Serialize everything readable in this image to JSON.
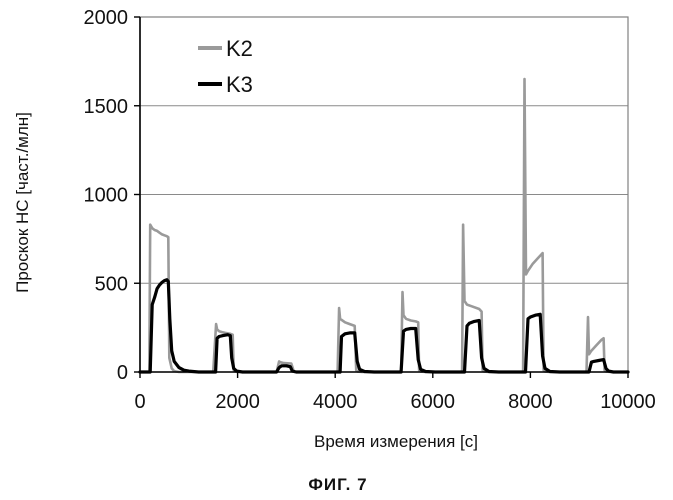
{
  "chart_data": {
    "type": "line",
    "ylabel": "Проскок НС [част./млн]",
    "xlabel": "Время измерения [с]",
    "caption": "ФИГ. 7",
    "xlim": [
      0,
      10000
    ],
    "ylim": [
      0,
      2000
    ],
    "x_ticks": [
      "0",
      "2000",
      "4000",
      "6000",
      "8000",
      "10000"
    ],
    "y_ticks": [
      "0",
      "500",
      "1000",
      "1500",
      "2000"
    ],
    "grid": "horizontal",
    "legend": "top-left",
    "series": [
      {
        "name": "K2",
        "color": "#9a9a9a",
        "x": [
          0,
          190,
          210,
          250,
          300,
          350,
          400,
          450,
          500,
          550,
          580,
          600,
          650,
          700,
          800,
          1000,
          1500,
          1560,
          1580,
          1620,
          1680,
          1750,
          1850,
          1900,
          1920,
          1950,
          2000,
          2100,
          2300,
          2800,
          2850,
          2870,
          2950,
          3100,
          3150,
          3180,
          3250,
          3400,
          4050,
          4080,
          4100,
          4200,
          4300,
          4400,
          4430,
          4460,
          4550,
          4700,
          5350,
          5380,
          5400,
          5450,
          5550,
          5650,
          5700,
          5720,
          5750,
          5850,
          5950,
          6600,
          6620,
          6650,
          6700,
          6800,
          6950,
          7000,
          7020,
          7050,
          7150,
          7300,
          7850,
          7880,
          7910,
          7950,
          8050,
          8150,
          8250,
          8270,
          8300,
          8400,
          8600,
          9150,
          9180,
          9200,
          9250,
          9350,
          9450,
          9500,
          9520,
          9550,
          9650,
          10000
        ],
        "values": [
          0,
          0,
          830,
          810,
          800,
          795,
          785,
          775,
          770,
          765,
          760,
          80,
          20,
          5,
          0,
          0,
          0,
          270,
          240,
          230,
          225,
          220,
          215,
          210,
          10,
          2,
          0,
          0,
          0,
          0,
          60,
          55,
          50,
          48,
          5,
          0,
          0,
          0,
          0,
          360,
          300,
          280,
          270,
          260,
          10,
          2,
          0,
          0,
          0,
          450,
          320,
          300,
          290,
          285,
          280,
          10,
          2,
          0,
          0,
          0,
          830,
          400,
          380,
          370,
          355,
          340,
          10,
          2,
          0,
          0,
          0,
          1650,
          550,
          570,
          610,
          640,
          670,
          10,
          2,
          0,
          0,
          0,
          310,
          100,
          120,
          150,
          180,
          190,
          10,
          2,
          0,
          0
        ]
      },
      {
        "name": "K3",
        "color": "#000000",
        "x": [
          0,
          210,
          250,
          300,
          350,
          400,
          450,
          500,
          550,
          580,
          610,
          650,
          700,
          800,
          900,
          1000,
          1200,
          1550,
          1580,
          1620,
          1700,
          1800,
          1850,
          1880,
          1920,
          1980,
          2100,
          2300,
          2800,
          2850,
          2900,
          3000,
          3080,
          3120,
          3200,
          4100,
          4130,
          4200,
          4300,
          4400,
          4450,
          4500,
          4600,
          4800,
          5350,
          5400,
          5450,
          5550,
          5650,
          5700,
          5750,
          5850,
          6050,
          6650,
          6700,
          6750,
          6850,
          6950,
          7000,
          7050,
          7150,
          7350,
          7900,
          7950,
          8000,
          8100,
          8200,
          8250,
          8300,
          8400,
          8600,
          9200,
          9250,
          9300,
          9400,
          9500,
          9550,
          9600,
          9700,
          10000
        ],
        "values": [
          0,
          0,
          380,
          420,
          470,
          490,
          505,
          515,
          520,
          510,
          300,
          120,
          60,
          25,
          10,
          5,
          0,
          0,
          190,
          200,
          205,
          210,
          205,
          80,
          20,
          5,
          0,
          0,
          0,
          25,
          35,
          35,
          30,
          5,
          0,
          0,
          200,
          215,
          220,
          220,
          60,
          15,
          3,
          0,
          0,
          230,
          240,
          245,
          245,
          70,
          15,
          3,
          0,
          0,
          260,
          275,
          285,
          290,
          80,
          20,
          3,
          0,
          0,
          300,
          310,
          320,
          325,
          90,
          20,
          3,
          0,
          0,
          55,
          60,
          65,
          70,
          20,
          5,
          0,
          0
        ]
      }
    ]
  }
}
